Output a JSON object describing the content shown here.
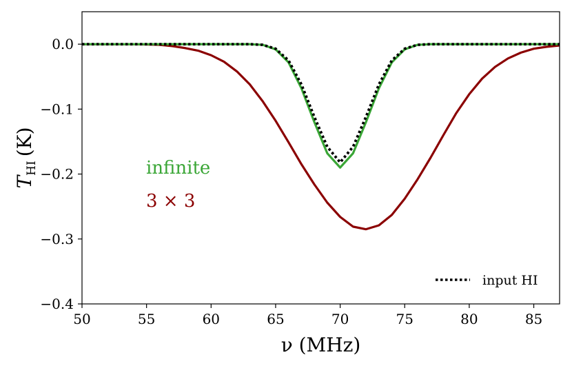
{
  "chart_data": {
    "type": "line",
    "xlabel": "ν (MHz)",
    "ylabel": "T_HI (K)",
    "ylabel_main": "T",
    "ylabel_sub": "HI",
    "ylabel_unit": "(K)",
    "xlim": [
      50,
      87
    ],
    "ylim": [
      -0.4,
      0.05
    ],
    "xticks": [
      50,
      55,
      60,
      65,
      70,
      75,
      80,
      85
    ],
    "yticks": [
      0.0,
      -0.1,
      -0.2,
      -0.3,
      -0.4
    ],
    "ytick_labels": [
      "0.0",
      "−0.1",
      "−0.2",
      "−0.3",
      "−0.4"
    ],
    "grid": false,
    "legend": {
      "position": "bottom-right",
      "entries": [
        "input HI"
      ]
    },
    "annotations": [
      {
        "text": "infinite",
        "color": "#3aa636"
      },
      {
        "text": "3 × 3",
        "color": "#8b0000"
      }
    ],
    "x": [
      50,
      51,
      52,
      53,
      54,
      55,
      56,
      57,
      58,
      59,
      60,
      61,
      62,
      63,
      64,
      65,
      66,
      67,
      68,
      69,
      70,
      71,
      72,
      73,
      74,
      75,
      76,
      77,
      78,
      79,
      80,
      81,
      82,
      83,
      84,
      85,
      86,
      87
    ],
    "series": [
      {
        "name": "3 × 3",
        "color": "#8b0000",
        "style": "solid",
        "values": [
          0.0,
          0.0,
          0.0,
          0.0,
          0.0,
          -0.0005,
          -0.001,
          -0.003,
          -0.006,
          -0.01,
          -0.017,
          -0.027,
          -0.042,
          -0.062,
          -0.088,
          -0.118,
          -0.151,
          -0.185,
          -0.216,
          -0.244,
          -0.266,
          -0.281,
          -0.285,
          -0.279,
          -0.263,
          -0.238,
          -0.208,
          -0.175,
          -0.14,
          -0.106,
          -0.077,
          -0.053,
          -0.035,
          -0.022,
          -0.013,
          -0.007,
          -0.004,
          -0.002
        ]
      },
      {
        "name": "infinite",
        "color": "#3aa636",
        "style": "solid",
        "values": [
          0,
          0,
          0,
          0,
          0,
          0,
          0,
          0,
          0,
          0,
          0,
          0,
          0,
          0,
          -0.001,
          -0.008,
          -0.028,
          -0.068,
          -0.12,
          -0.168,
          -0.19,
          -0.168,
          -0.12,
          -0.068,
          -0.028,
          -0.008,
          -0.001,
          0,
          0,
          0,
          0,
          0,
          0,
          0,
          0,
          0,
          0,
          0
        ]
      },
      {
        "name": "input HI",
        "color": "#000000",
        "style": "dotted",
        "values": [
          0,
          0,
          0,
          0,
          0,
          0,
          0,
          0,
          0,
          0,
          0,
          0,
          0,
          0,
          -0.001,
          -0.007,
          -0.025,
          -0.062,
          -0.112,
          -0.158,
          -0.182,
          -0.158,
          -0.112,
          -0.062,
          -0.025,
          -0.007,
          -0.001,
          0,
          0,
          0,
          0,
          0,
          0,
          0,
          0,
          0,
          0,
          0
        ]
      }
    ]
  }
}
